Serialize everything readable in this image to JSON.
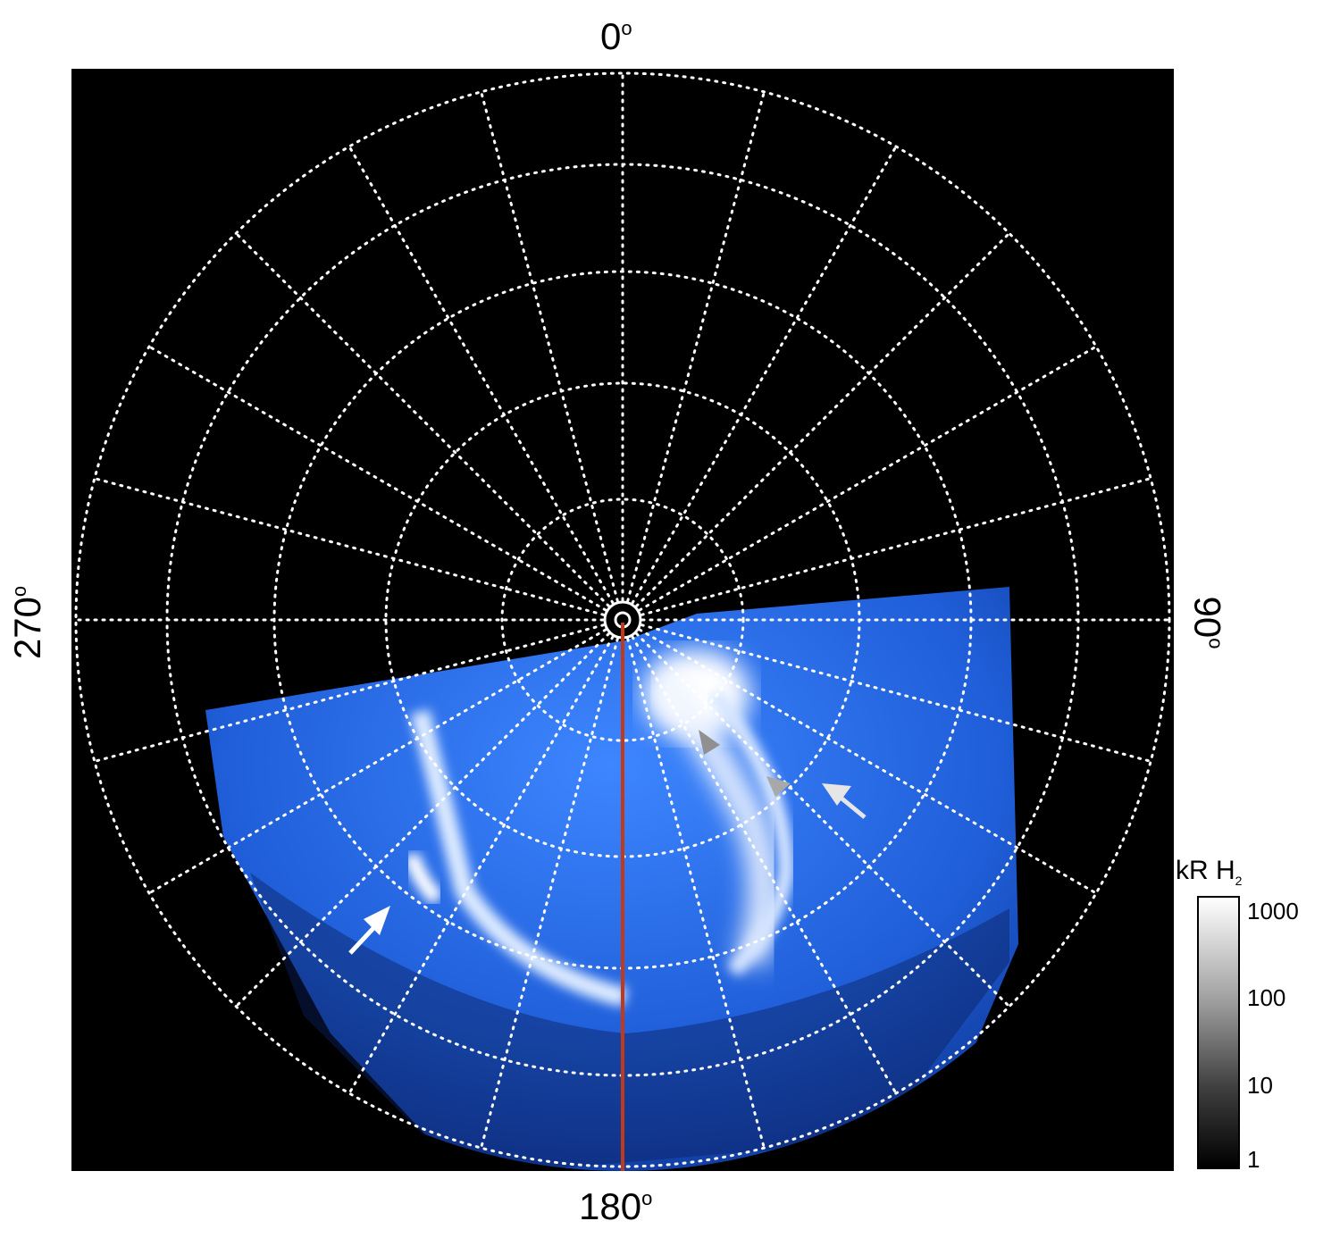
{
  "labels": {
    "top": "0",
    "bottom": "180",
    "left": "270",
    "right": "90",
    "degree": "o"
  },
  "colorbar": {
    "title_main": "kR H",
    "title_sub": "2",
    "ticks": [
      "1000",
      "100",
      "10",
      "1"
    ],
    "scale": "log",
    "range": [
      1,
      1000
    ],
    "colors": [
      "#000000",
      "#ffffff"
    ]
  },
  "image": {
    "background": "#000000",
    "aurora_color": "#2a6fe0",
    "meridian_line_color": "#c0391b",
    "grid_color": "#ffffff",
    "grid_style": "dotted",
    "arrows": [
      "white",
      "white",
      "gray",
      "gray"
    ]
  }
}
